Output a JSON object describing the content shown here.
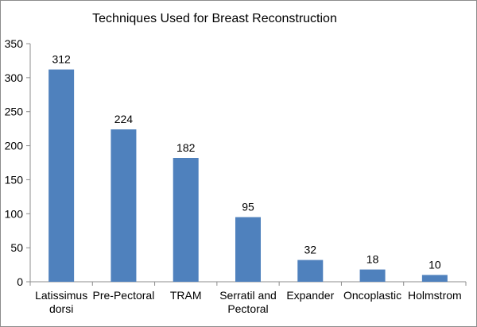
{
  "chart_data": {
    "type": "bar",
    "title": "Techniques Used for Breast Reconstruction",
    "xlabel": "",
    "ylabel": "",
    "categories": [
      [
        "Latissimus",
        "dorsi"
      ],
      [
        "Pre-Pectoral"
      ],
      [
        "TRAM"
      ],
      [
        "Serratil and",
        "Pectoral"
      ],
      [
        "Expander"
      ],
      [
        "Oncoplastic"
      ],
      [
        "Holmstrom"
      ]
    ],
    "values": [
      312,
      224,
      182,
      95,
      32,
      18,
      10
    ],
    "ylim": [
      0,
      350
    ],
    "yticks": [
      0,
      50,
      100,
      150,
      200,
      250,
      300,
      350
    ],
    "grid": false,
    "legend": "none",
    "bar_color": "#4f81bd"
  }
}
